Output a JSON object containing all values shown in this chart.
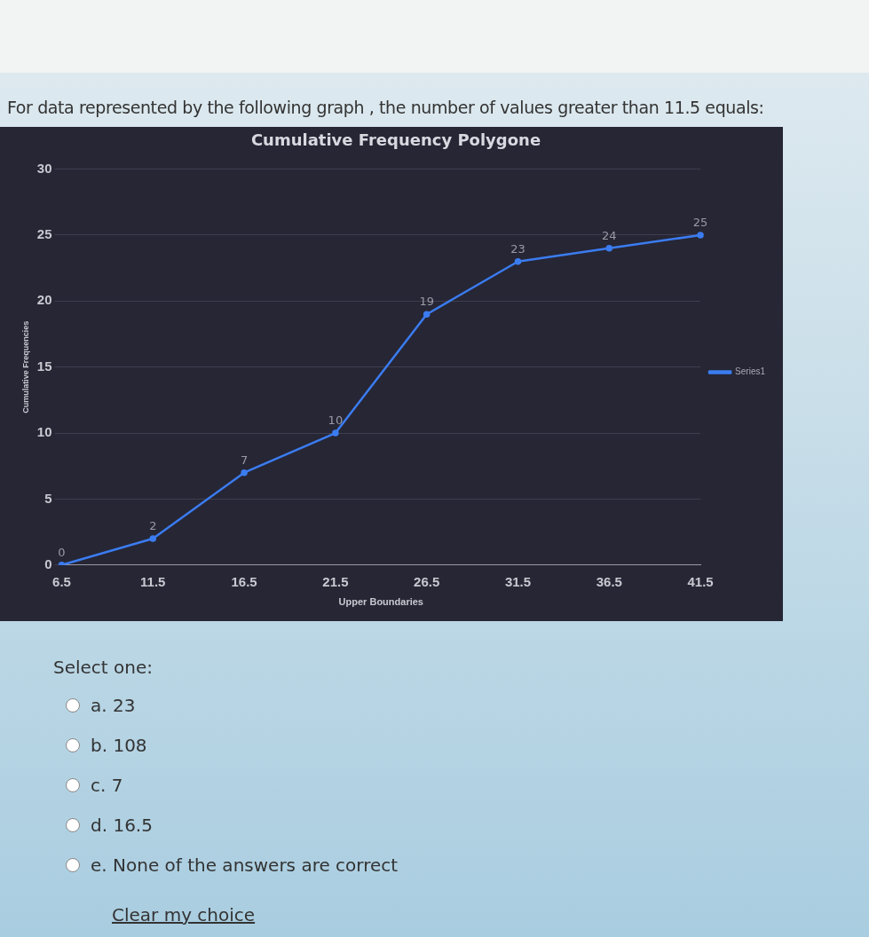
{
  "chart_data": {
    "type": "line",
    "title": "Cumulative Frequency Polygone",
    "xlabel": "Upper Boundaries",
    "ylabel": "Cumulative Frequencies",
    "categories": [
      "6.5",
      "11.5",
      "16.5",
      "21.5",
      "26.5",
      "31.5",
      "36.5",
      "41.5"
    ],
    "series": [
      {
        "name": "Series1",
        "color": "#3b7cf0",
        "values": [
          0,
          2,
          7,
          10,
          19,
          23,
          24,
          25
        ]
      }
    ],
    "ylim": [
      0,
      30
    ],
    "yticks": [
      0,
      5,
      10,
      15,
      20,
      25,
      30
    ],
    "grid": "y",
    "legend": "right",
    "marker": "circle",
    "data_labels": true,
    "annotations": [
      "For data represented by the following graph , the number of values greater than 11.5 equals:",
      "Select one:",
      "a. 23",
      "b. 108",
      "c. 7",
      "d. 16.5",
      "e. None of the answers are correct",
      "Clear my choice"
    ]
  }
}
